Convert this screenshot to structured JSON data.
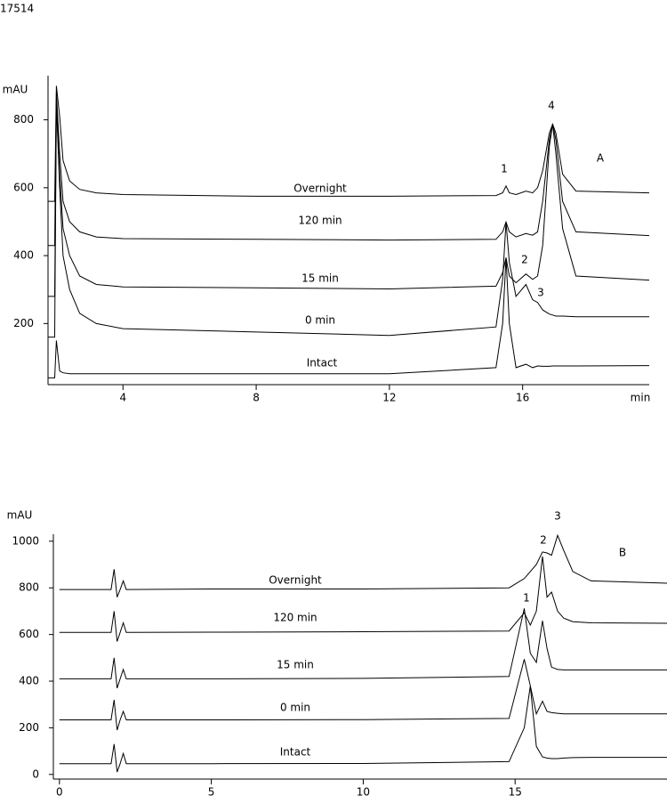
{
  "figure_id": "17514",
  "chart_data": [
    {
      "type": "line",
      "panel_label": "A",
      "y_label": "mAU",
      "x_label": "min",
      "xlim": [
        1.75,
        19.8
      ],
      "xticks": [
        4,
        8,
        12,
        16
      ],
      "ylim": [
        20,
        930
      ],
      "yticks": [
        200,
        400,
        600,
        800
      ],
      "annotations": [
        "1",
        "2",
        "3",
        "4"
      ],
      "series": [
        {
          "name": "Overnight",
          "color": "#000000",
          "x": [
            1.75,
            1.95,
            2.0,
            2.1,
            2.2,
            2.4,
            2.7,
            3.2,
            4,
            8,
            12,
            15.2,
            15.4,
            15.5,
            15.6,
            15.8,
            16.1,
            16.3,
            16.45,
            16.6,
            16.8,
            16.9,
            17.0,
            17.2,
            17.6,
            19.8
          ],
          "values": [
            560,
            560,
            900,
            810,
            680,
            620,
            595,
            585,
            580,
            575,
            575,
            577,
            585,
            605,
            585,
            580,
            590,
            585,
            600,
            650,
            760,
            787,
            760,
            640,
            590,
            585
          ]
        },
        {
          "name": "120 min",
          "color": "#000000",
          "x": [
            1.75,
            1.95,
            2.0,
            2.1,
            2.2,
            2.4,
            2.7,
            3.2,
            4,
            8,
            12,
            15.2,
            15.4,
            15.5,
            15.6,
            15.8,
            16.1,
            16.3,
            16.45,
            16.6,
            16.8,
            16.9,
            17.0,
            17.2,
            17.6,
            19.8
          ],
          "values": [
            430,
            430,
            880,
            700,
            560,
            500,
            470,
            455,
            450,
            448,
            446,
            448,
            470,
            499,
            470,
            455,
            465,
            460,
            470,
            560,
            740,
            787,
            740,
            560,
            470,
            459
          ]
        },
        {
          "name": "15 min",
          "color": "#000000",
          "x": [
            1.75,
            1.95,
            2.0,
            2.1,
            2.2,
            2.4,
            2.7,
            3.2,
            4,
            8,
            12,
            15.2,
            15.4,
            15.5,
            15.6,
            15.8,
            16.1,
            16.3,
            16.45,
            16.6,
            16.8,
            16.9,
            17.0,
            17.2,
            17.6,
            19.8
          ],
          "values": [
            280,
            280,
            850,
            640,
            480,
            400,
            340,
            315,
            308,
            305,
            302,
            310,
            350,
            394,
            340,
            320,
            346,
            330,
            340,
            430,
            720,
            787,
            700,
            480,
            340,
            328
          ]
        },
        {
          "name": "0 min",
          "color": "#000000",
          "x": [
            1.75,
            1.95,
            2.0,
            2.1,
            2.2,
            2.4,
            2.7,
            3.2,
            4,
            8,
            12,
            15.2,
            15.4,
            15.5,
            15.6,
            15.8,
            16.1,
            16.3,
            16.45,
            16.6,
            16.8,
            16.9,
            17.0,
            17.2,
            17.6,
            19.8
          ],
          "values": [
            160,
            160,
            850,
            600,
            400,
            300,
            230,
            200,
            185,
            175,
            165,
            190,
            330,
            499,
            380,
            280,
            315,
            270,
            262,
            240,
            228,
            225,
            222,
            222,
            220,
            220
          ]
        },
        {
          "name": "Intact",
          "color": "#000000",
          "x": [
            1.75,
            1.95,
            2.0,
            2.1,
            2.2,
            2.4,
            2.7,
            3.2,
            4,
            8,
            12,
            15.2,
            15.4,
            15.5,
            15.6,
            15.8,
            16.1,
            16.3,
            16.45,
            16.6,
            16.8,
            16.9,
            17.0,
            17.2,
            17.6,
            19.8
          ],
          "values": [
            40,
            40,
            150,
            60,
            55,
            52,
            52,
            52,
            52,
            52,
            52,
            70,
            200,
            394,
            200,
            70,
            80,
            70,
            75,
            74,
            74,
            75,
            75,
            75,
            75,
            76
          ]
        }
      ]
    },
    {
      "type": "line",
      "panel_label": "B",
      "y_label": "mAU",
      "xlim": [
        -0.2,
        20
      ],
      "xticks": [
        0,
        5,
        10,
        15
      ],
      "ylim": [
        -20,
        1030
      ],
      "yticks": [
        0,
        200,
        400,
        600,
        800,
        1000
      ],
      "annotations": [
        "1",
        "2",
        "3"
      ],
      "series": [
        {
          "name": "Overnight",
          "color": "#000000",
          "x": [
            0,
            1.7,
            1.8,
            1.9,
            2.0,
            2.1,
            2.2,
            5,
            10,
            14.8,
            15.3,
            15.5,
            15.7,
            15.9,
            16.05,
            16.2,
            16.4,
            16.6,
            16.9,
            17.5,
            20
          ],
          "values": [
            793,
            793,
            880,
            760,
            793,
            830,
            793,
            795,
            795,
            800,
            840,
            870,
            900,
            954,
            950,
            940,
            1025,
            960,
            870,
            830,
            820
          ]
        },
        {
          "name": "120 min",
          "color": "#000000",
          "x": [
            0,
            1.7,
            1.8,
            1.9,
            2.0,
            2.1,
            2.2,
            5,
            10,
            14.8,
            15.3,
            15.5,
            15.7,
            15.9,
            16.05,
            16.2,
            16.4,
            16.6,
            16.9,
            17.5,
            20
          ],
          "values": [
            609,
            609,
            700,
            570,
            609,
            650,
            609,
            610,
            612,
            615,
            693,
            640,
            700,
            935,
            760,
            782,
            700,
            670,
            655,
            650,
            648
          ]
        },
        {
          "name": "15 min",
          "color": "#000000",
          "x": [
            0,
            1.7,
            1.8,
            1.9,
            2.0,
            2.1,
            2.2,
            5,
            10,
            14.8,
            15.3,
            15.5,
            15.7,
            15.9,
            16.05,
            16.2,
            16.4,
            16.6,
            16.9,
            17.5,
            20
          ],
          "values": [
            410,
            410,
            500,
            370,
            410,
            450,
            410,
            410,
            412,
            420,
            712,
            520,
            480,
            659,
            540,
            460,
            450,
            448,
            448,
            448,
            448
          ]
        },
        {
          "name": "0 min",
          "color": "#000000",
          "x": [
            0,
            1.7,
            1.8,
            1.9,
            2.0,
            2.1,
            2.2,
            5,
            10,
            14.8,
            15.3,
            15.5,
            15.7,
            15.9,
            16.05,
            16.2,
            16.4,
            16.6,
            16.9,
            17.5,
            20
          ],
          "values": [
            234,
            234,
            320,
            190,
            234,
            270,
            234,
            234,
            235,
            240,
            494,
            380,
            260,
            314,
            270,
            265,
            262,
            260,
            260,
            260,
            260
          ]
        },
        {
          "name": "Intact",
          "color": "#000000",
          "x": [
            0,
            1.7,
            1.8,
            1.9,
            2.0,
            2.1,
            2.2,
            5,
            10,
            14.8,
            15.3,
            15.5,
            15.7,
            15.9,
            16.05,
            16.2,
            16.4,
            16.6,
            16.9,
            17.5,
            20
          ],
          "values": [
            46,
            46,
            130,
            10,
            46,
            90,
            46,
            46,
            47,
            55,
            200,
            379,
            120,
            75,
            70,
            68,
            68,
            70,
            72,
            73,
            73
          ]
        }
      ]
    }
  ]
}
